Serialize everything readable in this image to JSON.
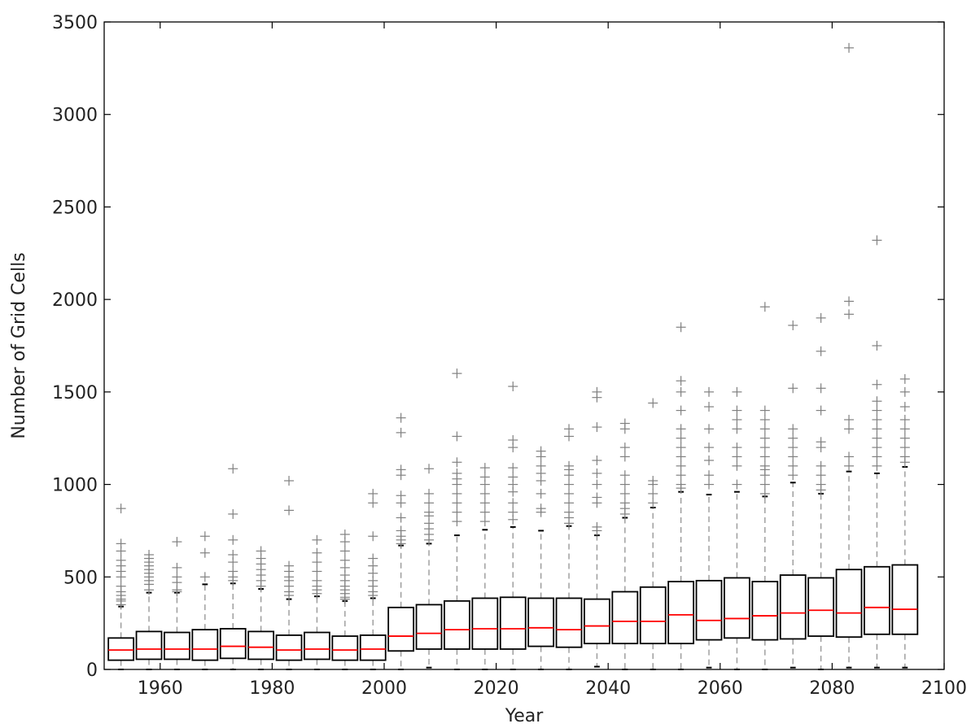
{
  "chart_data": {
    "type": "box",
    "title": "",
    "xlabel": "Year",
    "ylabel": "Number of Grid Cells",
    "xlim": [
      1950,
      2100
    ],
    "ylim": [
      0,
      3500
    ],
    "xticks": [
      1960,
      1980,
      2000,
      2020,
      2040,
      2060,
      2080,
      2100
    ],
    "yticks": [
      0,
      500,
      1000,
      1500,
      2000,
      2500,
      3000,
      3500
    ],
    "grid": false,
    "colors": {
      "box": "#000000",
      "median": "#ff0000",
      "whisker": "#999999",
      "flier": "#808080",
      "axes": "#000000"
    },
    "boxes": [
      {
        "x": 1953,
        "q1": 50,
        "median": 105,
        "q3": 170,
        "whisker_low": 0,
        "whisker_high": 340,
        "fliers": [
          350,
          370,
          380,
          400,
          420,
          450,
          500,
          530,
          560,
          590,
          640,
          680,
          870
        ]
      },
      {
        "x": 1958,
        "q1": 55,
        "median": 110,
        "q3": 205,
        "whisker_low": 0,
        "whisker_high": 415,
        "fliers": [
          430,
          460,
          480,
          500,
          520,
          540,
          560,
          580,
          600,
          620
        ]
      },
      {
        "x": 1963,
        "q1": 55,
        "median": 110,
        "q3": 200,
        "whisker_low": 0,
        "whisker_high": 415,
        "fliers": [
          420,
          430,
          470,
          500,
          550,
          690
        ]
      },
      {
        "x": 1968,
        "q1": 50,
        "median": 110,
        "q3": 215,
        "whisker_low": 0,
        "whisker_high": 460,
        "fliers": [
          500,
          630,
          720
        ]
      },
      {
        "x": 1973,
        "q1": 60,
        "median": 125,
        "q3": 220,
        "whisker_low": 0,
        "whisker_high": 465,
        "fliers": [
          480,
          500,
          530,
          580,
          620,
          700,
          840,
          1085
        ]
      },
      {
        "x": 1978,
        "q1": 55,
        "median": 120,
        "q3": 205,
        "whisker_low": 0,
        "whisker_high": 435,
        "fliers": [
          450,
          480,
          510,
          540,
          570,
          600,
          640
        ]
      },
      {
        "x": 1983,
        "q1": 50,
        "median": 105,
        "q3": 185,
        "whisker_low": 0,
        "whisker_high": 380,
        "fliers": [
          400,
          420,
          450,
          480,
          500,
          530,
          560,
          860,
          1020
        ]
      },
      {
        "x": 1988,
        "q1": 55,
        "median": 110,
        "q3": 200,
        "whisker_low": 0,
        "whisker_high": 395,
        "fliers": [
          410,
          430,
          450,
          480,
          530,
          580,
          630,
          700
        ]
      },
      {
        "x": 1993,
        "q1": 50,
        "median": 105,
        "q3": 180,
        "whisker_low": 0,
        "whisker_high": 370,
        "fliers": [
          380,
          390,
          410,
          430,
          450,
          480,
          510,
          550,
          590,
          640,
          690,
          730
        ]
      },
      {
        "x": 1998,
        "q1": 50,
        "median": 110,
        "q3": 185,
        "whisker_low": 0,
        "whisker_high": 385,
        "fliers": [
          400,
          420,
          450,
          480,
          520,
          560,
          600,
          720,
          900,
          950
        ]
      },
      {
        "x": 2003,
        "q1": 100,
        "median": 180,
        "q3": 335,
        "whisker_low": 0,
        "whisker_high": 670,
        "fliers": [
          680,
          700,
          720,
          750,
          820,
          900,
          940,
          1050,
          1080,
          1280,
          1360
        ]
      },
      {
        "x": 2008,
        "q1": 110,
        "median": 195,
        "q3": 350,
        "whisker_low": 10,
        "whisker_high": 680,
        "fliers": [
          700,
          730,
          760,
          790,
          830,
          850,
          900,
          950,
          1085
        ]
      },
      {
        "x": 2013,
        "q1": 110,
        "median": 215,
        "q3": 370,
        "whisker_low": 0,
        "whisker_high": 725,
        "fliers": [
          800,
          850,
          900,
          950,
          1000,
          1030,
          1060,
          1120,
          1260,
          1600
        ]
      },
      {
        "x": 2018,
        "q1": 110,
        "median": 220,
        "q3": 385,
        "whisker_low": 0,
        "whisker_high": 755,
        "fliers": [
          800,
          850,
          900,
          950,
          1000,
          1040,
          1090
        ]
      },
      {
        "x": 2023,
        "q1": 110,
        "median": 220,
        "q3": 390,
        "whisker_low": 0,
        "whisker_high": 770,
        "fliers": [
          810,
          850,
          900,
          960,
          1000,
          1040,
          1090,
          1200,
          1240,
          1530
        ]
      },
      {
        "x": 2028,
        "q1": 125,
        "median": 225,
        "q3": 385,
        "whisker_low": 0,
        "whisker_high": 750,
        "fliers": [
          850,
          870,
          950,
          1020,
          1060,
          1100,
          1150,
          1180
        ]
      },
      {
        "x": 2033,
        "q1": 120,
        "median": 215,
        "q3": 385,
        "whisker_low": 0,
        "whisker_high": 775,
        "fliers": [
          790,
          820,
          850,
          900,
          950,
          1000,
          1050,
          1080,
          1100,
          1260,
          1300
        ]
      },
      {
        "x": 2038,
        "q1": 140,
        "median": 235,
        "q3": 380,
        "whisker_low": 15,
        "whisker_high": 725,
        "fliers": [
          750,
          770,
          900,
          930,
          1000,
          1060,
          1130,
          1310,
          1470,
          1500
        ]
      },
      {
        "x": 2043,
        "q1": 140,
        "median": 260,
        "q3": 420,
        "whisker_low": 0,
        "whisker_high": 820,
        "fliers": [
          840,
          870,
          900,
          950,
          1000,
          1050,
          1150,
          1200,
          1300,
          1330
        ]
      },
      {
        "x": 2048,
        "q1": 140,
        "median": 260,
        "q3": 445,
        "whisker_low": 0,
        "whisker_high": 875,
        "fliers": [
          900,
          950,
          1000,
          1020,
          1440
        ]
      },
      {
        "x": 2053,
        "q1": 140,
        "median": 295,
        "q3": 475,
        "whisker_low": 0,
        "whisker_high": 960,
        "fliers": [
          980,
          1000,
          1050,
          1100,
          1150,
          1200,
          1250,
          1300,
          1400,
          1500,
          1560,
          1850
        ]
      },
      {
        "x": 2058,
        "q1": 160,
        "median": 265,
        "q3": 480,
        "whisker_low": 10,
        "whisker_high": 945,
        "fliers": [
          1000,
          1050,
          1130,
          1200,
          1300,
          1420,
          1500
        ]
      },
      {
        "x": 2063,
        "q1": 170,
        "median": 275,
        "q3": 495,
        "whisker_low": 0,
        "whisker_high": 960,
        "fliers": [
          1000,
          1100,
          1150,
          1200,
          1300,
          1350,
          1400,
          1500
        ]
      },
      {
        "x": 2068,
        "q1": 160,
        "median": 290,
        "q3": 475,
        "whisker_low": 0,
        "whisker_high": 935,
        "fliers": [
          950,
          1000,
          1050,
          1080,
          1100,
          1150,
          1200,
          1250,
          1300,
          1350,
          1400,
          1960
        ]
      },
      {
        "x": 2073,
        "q1": 165,
        "median": 305,
        "q3": 510,
        "whisker_low": 10,
        "whisker_high": 1010,
        "fliers": [
          1050,
          1100,
          1150,
          1200,
          1250,
          1300,
          1520,
          1860
        ]
      },
      {
        "x": 2078,
        "q1": 180,
        "median": 320,
        "q3": 495,
        "whisker_low": 0,
        "whisker_high": 950,
        "fliers": [
          970,
          1000,
          1050,
          1100,
          1200,
          1230,
          1400,
          1520,
          1720,
          1900
        ]
      },
      {
        "x": 2083,
        "q1": 175,
        "median": 305,
        "q3": 540,
        "whisker_low": 10,
        "whisker_high": 1070,
        "fliers": [
          1100,
          1150,
          1300,
          1350,
          1920,
          1990,
          3360
        ]
      },
      {
        "x": 2088,
        "q1": 190,
        "median": 335,
        "q3": 555,
        "whisker_low": 10,
        "whisker_high": 1060,
        "fliers": [
          1100,
          1150,
          1200,
          1250,
          1300,
          1350,
          1400,
          1450,
          1540,
          1750,
          2320
        ]
      },
      {
        "x": 2093,
        "q1": 190,
        "median": 325,
        "q3": 565,
        "whisker_low": 10,
        "whisker_high": 1095,
        "fliers": [
          1120,
          1150,
          1200,
          1250,
          1300,
          1350,
          1420,
          1500,
          1570
        ]
      }
    ]
  }
}
